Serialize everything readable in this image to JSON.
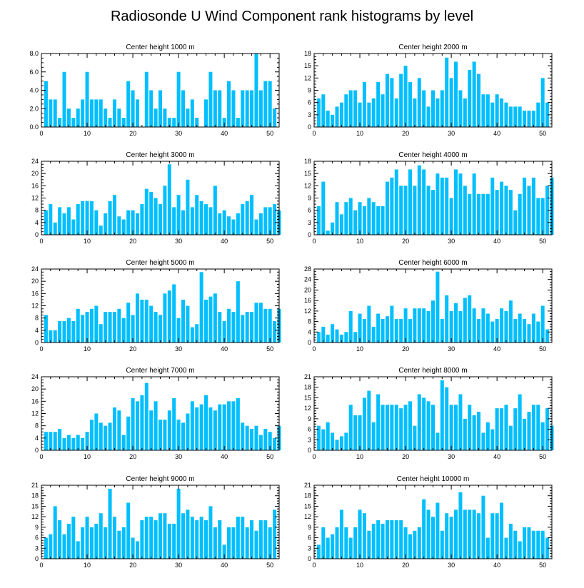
{
  "figure_title": "Radiosonde U Wind Component rank histograms by level",
  "colors": {
    "bar": "#00BFFF",
    "axis": "#000000",
    "background": "#FFFFFF"
  },
  "chart_data": [
    {
      "type": "bar",
      "title": "Center height 1000 m",
      "xlim": [
        0,
        52
      ],
      "ylim": [
        0,
        8
      ],
      "yticks": [
        0,
        2,
        4,
        6,
        8
      ],
      "ytick_labels": [
        "0.0",
        "2.0",
        "4.0",
        "6.0",
        "8.0"
      ],
      "xticks": [
        0,
        10,
        20,
        30,
        40,
        50
      ],
      "values": [
        5,
        3,
        3,
        1,
        6,
        2,
        1,
        2,
        3,
        6,
        3,
        3,
        3,
        2,
        1,
        3,
        2,
        1,
        5,
        4,
        3,
        0,
        6,
        4,
        2,
        4,
        2,
        1,
        1,
        6,
        4,
        2,
        3,
        1,
        0,
        3,
        6,
        4,
        4,
        1,
        5,
        4,
        1,
        4,
        4,
        4,
        8,
        4,
        5,
        5,
        2
      ]
    },
    {
      "type": "bar",
      "title": "Center height 2000 m",
      "xlim": [
        0,
        52
      ],
      "ylim": [
        0,
        18
      ],
      "yticks": [
        0,
        3,
        6,
        9,
        12,
        15,
        18
      ],
      "ytick_labels": [
        "0",
        "3",
        "6",
        "9",
        "12",
        "15",
        "18"
      ],
      "xticks": [
        0,
        10,
        20,
        30,
        40,
        50
      ],
      "values": [
        7,
        8,
        4,
        3,
        5,
        6,
        8,
        9,
        9,
        6,
        11,
        6,
        7,
        11,
        8,
        13,
        12,
        7,
        13,
        15,
        11,
        7,
        12,
        9,
        5,
        9,
        7,
        9,
        17,
        12,
        16,
        9,
        7,
        14,
        16,
        13,
        8,
        8,
        6,
        8,
        7,
        6,
        5,
        5,
        5,
        4,
        4,
        4,
        6,
        12,
        6
      ]
    },
    {
      "type": "bar",
      "title": "Center height 3000 m",
      "xlim": [
        0,
        52
      ],
      "ylim": [
        0,
        24
      ],
      "yticks": [
        0,
        4,
        8,
        12,
        16,
        20,
        24
      ],
      "ytick_labels": [
        "0",
        "4",
        "8",
        "12",
        "16",
        "20",
        "24"
      ],
      "xticks": [
        0,
        10,
        20,
        30,
        40,
        50
      ],
      "values": [
        8,
        10,
        4,
        9,
        7,
        9,
        5,
        10,
        11,
        11,
        11,
        8,
        3,
        7,
        11,
        13,
        6,
        5,
        8,
        8,
        7,
        10,
        15,
        14,
        12,
        10,
        16,
        23,
        9,
        13,
        8,
        18,
        9,
        13,
        11,
        10,
        9,
        16,
        7,
        8,
        6,
        5,
        7,
        10,
        11,
        13,
        5,
        7,
        9,
        9,
        10,
        8
      ]
    },
    {
      "type": "bar",
      "title": "Center height 4000 m",
      "xlim": [
        0,
        52
      ],
      "ylim": [
        0,
        18
      ],
      "yticks": [
        0,
        3,
        6,
        9,
        12,
        15,
        18
      ],
      "ytick_labels": [
        "0",
        "3",
        "6",
        "9",
        "12",
        "15",
        "18"
      ],
      "xticks": [
        0,
        10,
        20,
        30,
        40,
        50
      ],
      "values": [
        7,
        13,
        1,
        3,
        8,
        5,
        8,
        9,
        6,
        8,
        7,
        9,
        8,
        7,
        7,
        13,
        14,
        16,
        12,
        12,
        16,
        12,
        17,
        16,
        12,
        11,
        15,
        14,
        14,
        9,
        16,
        15,
        12,
        10,
        15,
        10,
        10,
        10,
        14,
        11,
        13,
        12,
        11,
        6,
        10,
        14,
        12,
        14,
        9,
        9,
        12,
        14
      ]
    },
    {
      "type": "bar",
      "title": "Center height 5000 m",
      "xlim": [
        0,
        52
      ],
      "ylim": [
        0,
        24
      ],
      "yticks": [
        0,
        4,
        8,
        12,
        16,
        20,
        24
      ],
      "ytick_labels": [
        "0",
        "4",
        "8",
        "12",
        "16",
        "20",
        "24"
      ],
      "xticks": [
        0,
        10,
        20,
        30,
        40,
        50
      ],
      "values": [
        9,
        4,
        4,
        7,
        7,
        8,
        7,
        11,
        9,
        10,
        11,
        12,
        6,
        10,
        10,
        10,
        11,
        8,
        13,
        9,
        16,
        14,
        14,
        12,
        10,
        9,
        16,
        17,
        19,
        8,
        14,
        12,
        5,
        6,
        23,
        14,
        15,
        16,
        10,
        7,
        11,
        10,
        20,
        9,
        10,
        10,
        13,
        13,
        11,
        11,
        7,
        11
      ]
    },
    {
      "type": "bar",
      "title": "Center height 6000 m",
      "xlim": [
        0,
        52
      ],
      "ylim": [
        0,
        28
      ],
      "yticks": [
        0,
        4,
        8,
        12,
        16,
        20,
        24,
        28
      ],
      "ytick_labels": [
        "0",
        "4",
        "8",
        "12",
        "16",
        "20",
        "24",
        "28"
      ],
      "xticks": [
        0,
        10,
        20,
        30,
        40,
        50
      ],
      "values": [
        4,
        6,
        3,
        7,
        5,
        3,
        4,
        12,
        4,
        11,
        9,
        14,
        6,
        11,
        9,
        10,
        14,
        9,
        9,
        13,
        9,
        13,
        13,
        13,
        12,
        16,
        27,
        9,
        18,
        12,
        15,
        12,
        17,
        18,
        13,
        9,
        13,
        11,
        8,
        9,
        13,
        12,
        16,
        9,
        11,
        9,
        7,
        11,
        8,
        14,
        5
      ]
    },
    {
      "type": "bar",
      "title": "Center height 7000 m",
      "xlim": [
        0,
        52
      ],
      "ylim": [
        0,
        24
      ],
      "yticks": [
        0,
        4,
        8,
        12,
        16,
        20,
        24
      ],
      "ytick_labels": [
        "0",
        "4",
        "8",
        "12",
        "16",
        "20",
        "24"
      ],
      "xticks": [
        0,
        10,
        20,
        30,
        40,
        50
      ],
      "values": [
        6,
        6,
        6,
        7,
        4,
        5,
        4,
        5,
        4,
        6,
        10,
        12,
        9,
        8,
        9,
        14,
        13,
        5,
        11,
        17,
        16,
        18,
        22,
        13,
        16,
        10,
        10,
        13,
        17,
        10,
        9,
        12,
        16,
        14,
        15,
        18,
        14,
        13,
        15,
        15,
        16,
        16,
        17,
        9,
        8,
        7,
        8,
        5,
        7,
        6,
        4,
        8
      ]
    },
    {
      "type": "bar",
      "title": "Center height 8000 m",
      "xlim": [
        0,
        52
      ],
      "ylim": [
        0,
        21
      ],
      "yticks": [
        0,
        3,
        6,
        9,
        12,
        15,
        18,
        21
      ],
      "ytick_labels": [
        "0",
        "3",
        "6",
        "9",
        "12",
        "15",
        "18",
        "21"
      ],
      "xticks": [
        0,
        10,
        20,
        30,
        40,
        50
      ],
      "values": [
        7,
        6,
        8,
        5,
        3,
        4,
        5,
        13,
        10,
        10,
        15,
        17,
        8,
        16,
        13,
        13,
        13,
        13,
        12,
        13,
        14,
        7,
        16,
        15,
        14,
        13,
        5,
        20,
        18,
        13,
        13,
        16,
        9,
        13,
        10,
        11,
        5,
        8,
        6,
        12,
        12,
        13,
        7,
        12,
        16,
        9,
        11,
        13,
        13,
        8,
        12,
        7
      ]
    },
    {
      "type": "bar",
      "title": "Center height 9000 m",
      "xlim": [
        0,
        52
      ],
      "ylim": [
        0,
        21
      ],
      "yticks": [
        0,
        3,
        6,
        9,
        12,
        15,
        18,
        21
      ],
      "ytick_labels": [
        "0",
        "3",
        "6",
        "9",
        "12",
        "15",
        "18",
        "21"
      ],
      "xticks": [
        0,
        10,
        20,
        30,
        40,
        50
      ],
      "values": [
        6,
        7,
        15,
        11,
        7,
        10,
        12,
        5,
        9,
        12,
        9,
        10,
        13,
        9,
        20,
        12,
        8,
        9,
        16,
        6,
        5,
        11,
        12,
        12,
        11,
        13,
        13,
        10,
        10,
        20,
        13,
        14,
        12,
        11,
        12,
        11,
        15,
        9,
        11,
        4,
        9,
        9,
        12,
        12,
        9,
        11,
        8,
        11,
        11,
        9,
        14
      ]
    },
    {
      "type": "bar",
      "title": "Center height 10000 m",
      "xlim": [
        0,
        52
      ],
      "ylim": [
        0,
        21
      ],
      "yticks": [
        0,
        3,
        6,
        9,
        12,
        15,
        18,
        21
      ],
      "ytick_labels": [
        "0",
        "3",
        "6",
        "9",
        "12",
        "15",
        "18",
        "21"
      ],
      "xticks": [
        0,
        10,
        20,
        30,
        40,
        50
      ],
      "values": [
        4,
        9,
        6,
        7,
        9,
        14,
        9,
        6,
        9,
        14,
        13,
        8,
        10,
        11,
        10,
        11,
        11,
        11,
        11,
        9,
        7,
        8,
        9,
        17,
        14,
        12,
        16,
        8,
        13,
        12,
        14,
        19,
        14,
        14,
        14,
        13,
        18,
        6,
        13,
        13,
        16,
        6,
        10,
        8,
        5,
        9,
        9,
        8,
        8,
        8,
        6
      ]
    }
  ]
}
